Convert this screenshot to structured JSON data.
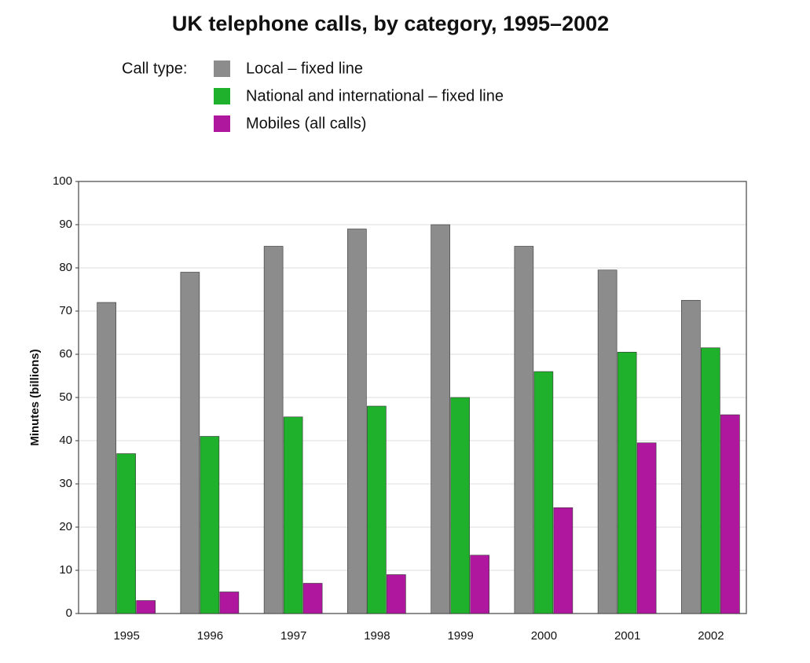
{
  "chart_data": {
    "type": "bar",
    "title": "UK telephone calls, by category, 1995–2002",
    "legend_title": "Call type:",
    "y_label": "Minutes (billions)",
    "categories": [
      "1995",
      "1996",
      "1997",
      "1998",
      "1999",
      "2000",
      "2001",
      "2002"
    ],
    "series": [
      {
        "name": "Local – fixed line",
        "color": "#8c8c8c",
        "values": [
          72,
          79,
          85,
          89,
          90,
          85,
          79.5,
          72.5
        ]
      },
      {
        "name": "National and international – fixed line",
        "color": "#1fb02c",
        "values": [
          37,
          41,
          45.5,
          48,
          50,
          56,
          60.5,
          61.5
        ]
      },
      {
        "name": "Mobiles (all calls)",
        "color": "#b0179f",
        "values": [
          3,
          5,
          7,
          9,
          13.5,
          24.5,
          39.5,
          46
        ]
      }
    ],
    "ylim": [
      0,
      100
    ],
    "yticks": [
      0,
      10,
      20,
      30,
      40,
      50,
      60,
      70,
      80,
      90,
      100
    ],
    "grid": true
  }
}
